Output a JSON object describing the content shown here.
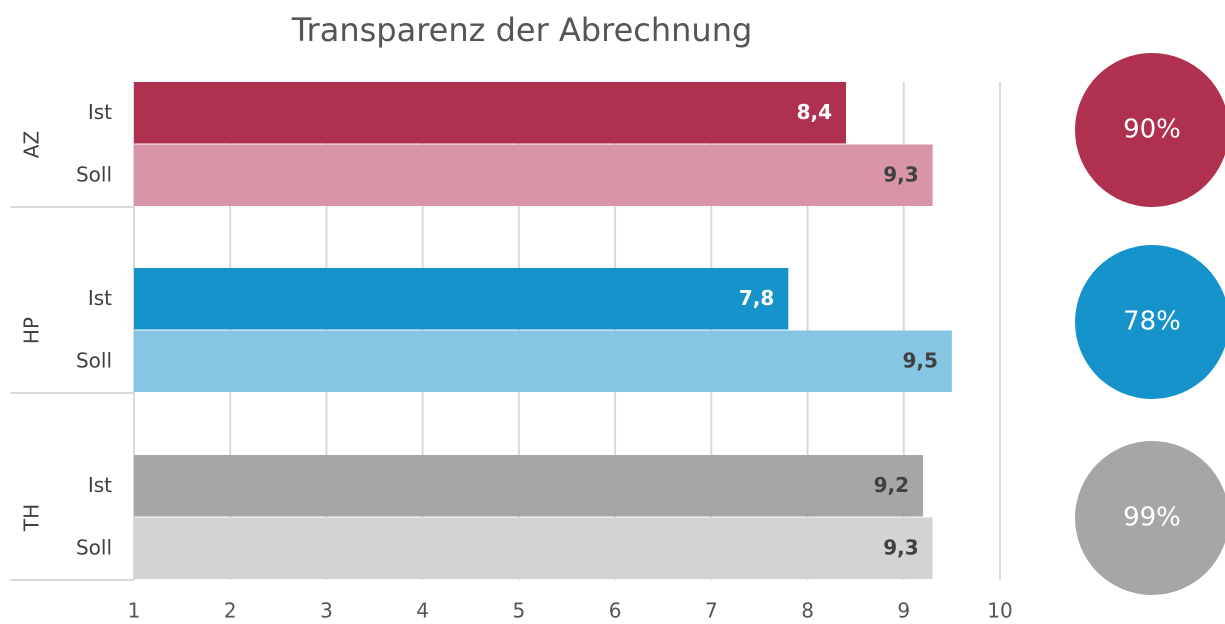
{
  "chart_data": {
    "type": "bar",
    "orientation": "horizontal",
    "title": "Transparenz der Abrechnung",
    "categories": [
      "AZ",
      "HP",
      "TH"
    ],
    "series": [
      {
        "name": "Ist",
        "colors": [
          "#b03050",
          "#1793cc",
          "#a6a6a6"
        ],
        "values": [
          8.4,
          7.8,
          9.2
        ],
        "value_labels": [
          "8,4",
          "7,8",
          "9,2"
        ]
      },
      {
        "name": "Soll",
        "colors": [
          "#d995a8",
          "#86c6e4",
          "#d3d3d3"
        ],
        "values": [
          9.3,
          9.5,
          9.3
        ],
        "value_labels": [
          "9,3",
          "9,5",
          "9,3"
        ]
      }
    ],
    "xlim": [
      1,
      10
    ],
    "xticks": [
      1,
      2,
      3,
      4,
      5,
      6,
      7,
      8,
      9,
      10
    ],
    "grid": true,
    "circles": {
      "colors": [
        "#b03050",
        "#1793cc",
        "#a6a6a6"
      ],
      "values": [
        90,
        78,
        99
      ],
      "value_labels": [
        "90%",
        "78%",
        "99%"
      ]
    }
  }
}
